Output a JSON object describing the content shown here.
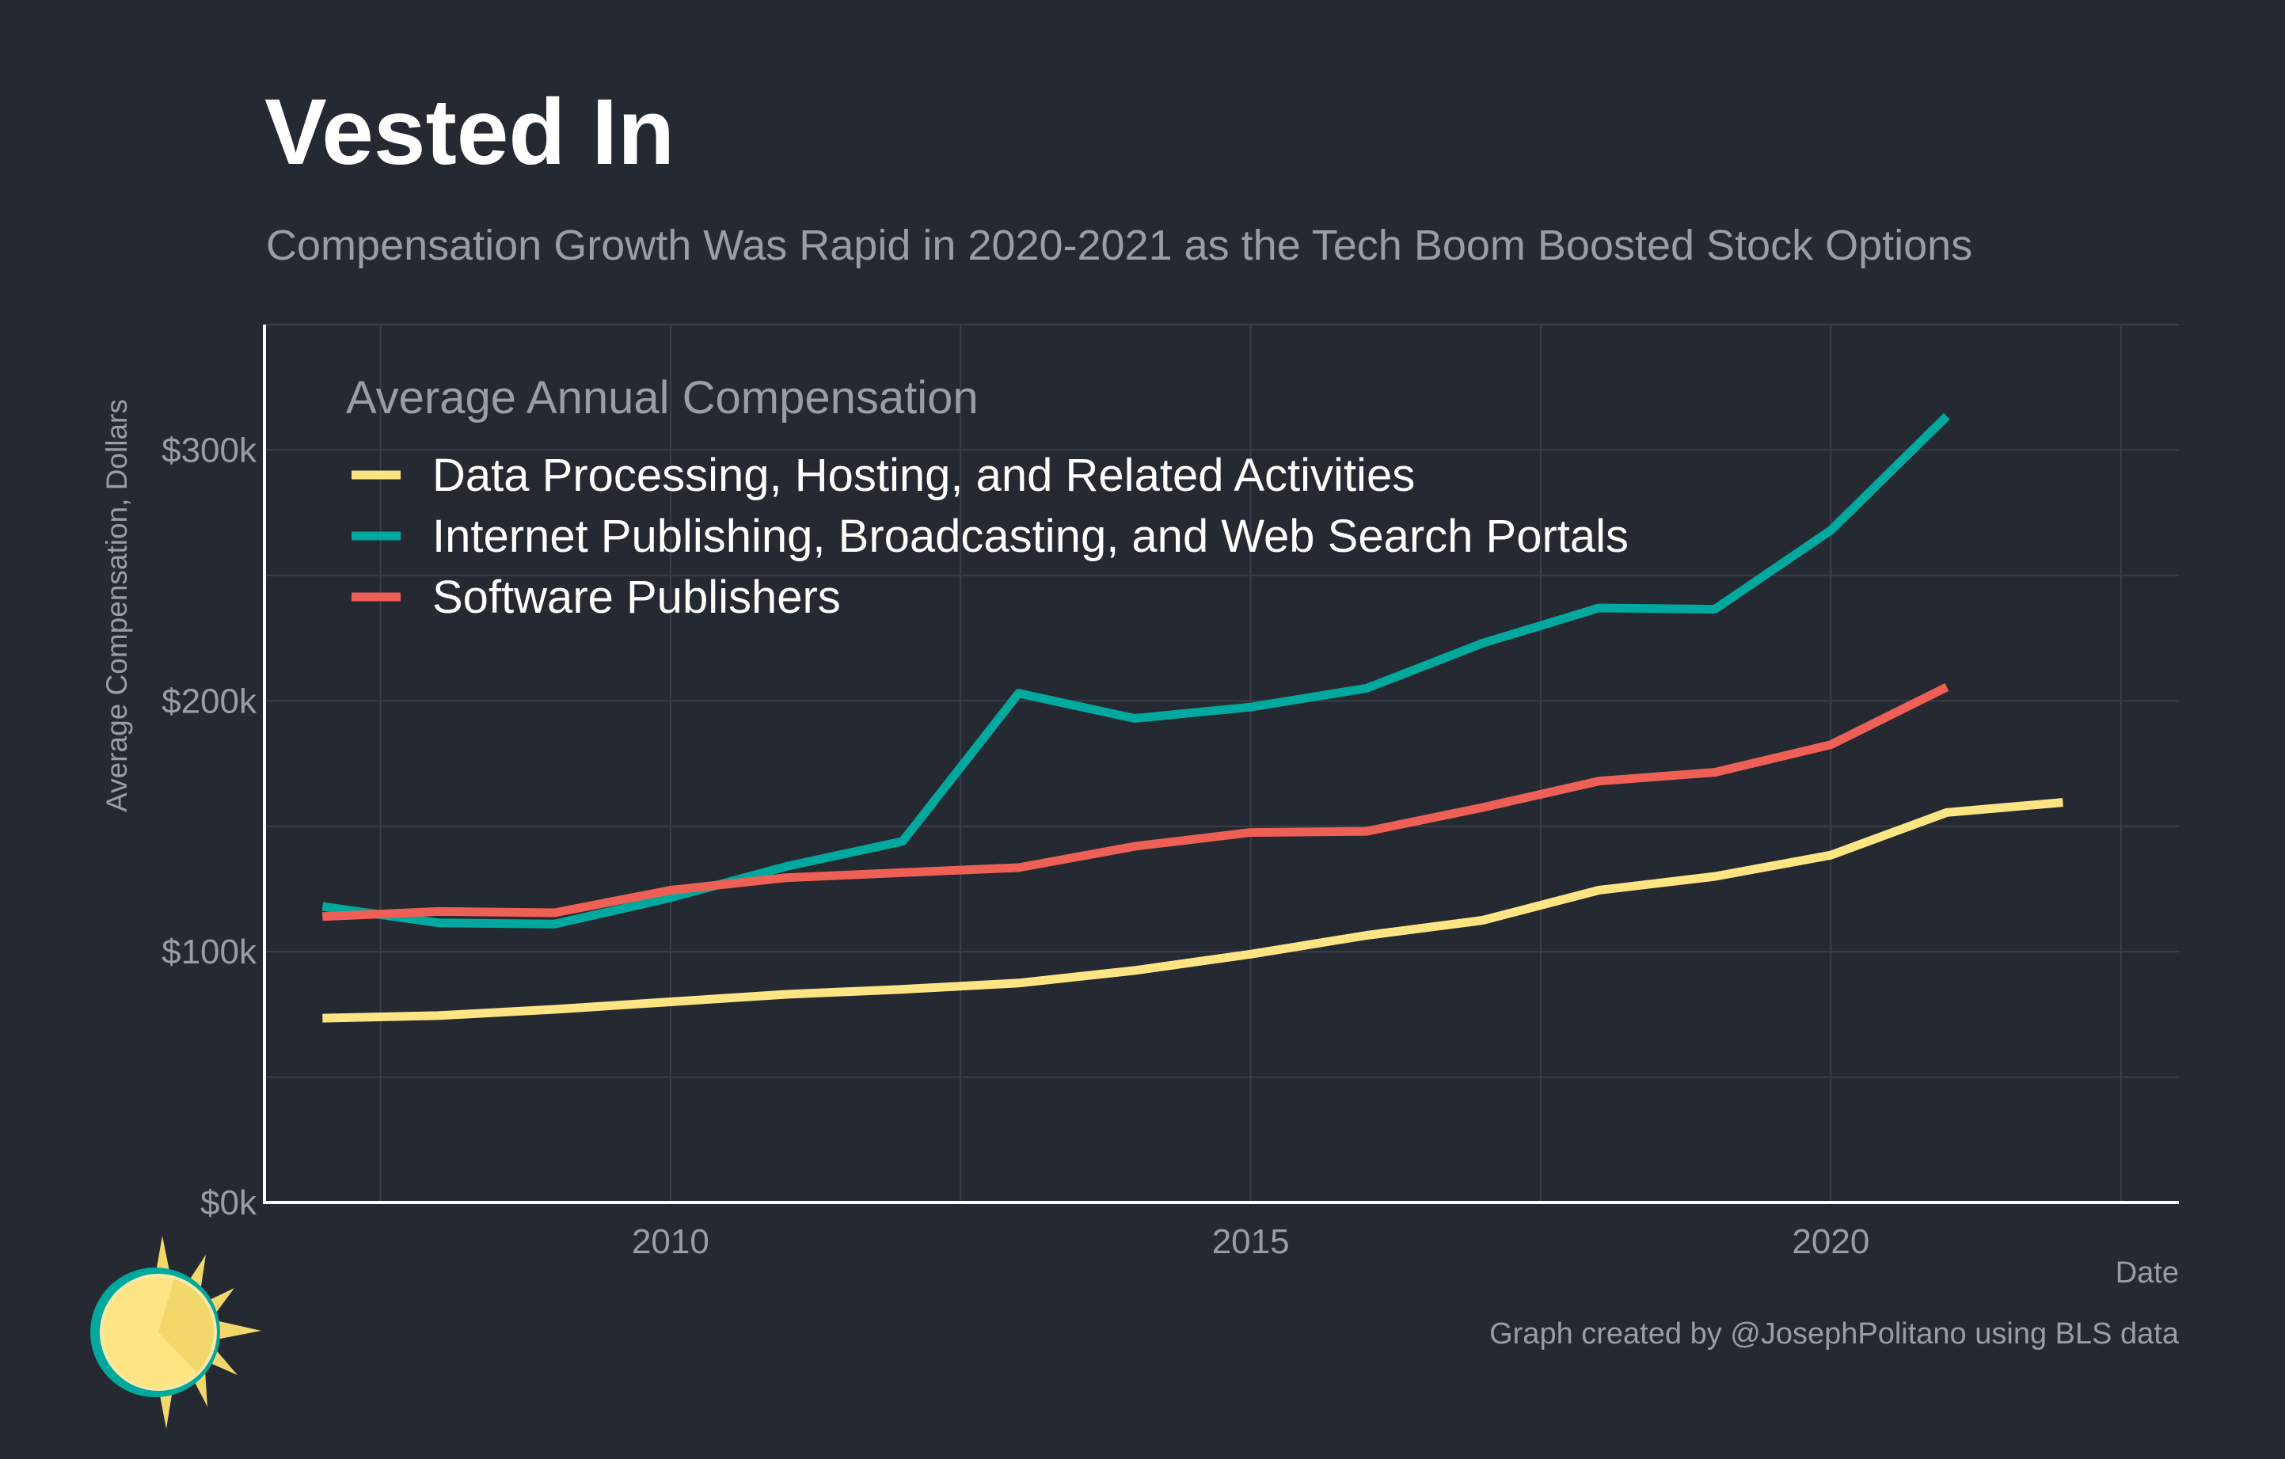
{
  "title": "Vested In",
  "subtitle": "Compensation Growth Was Rapid in 2020-2021 as the Tech Boom Boosted Stock Options",
  "caption": "Graph created by @JosephPolitano using BLS data",
  "colors": {
    "background": "#252932",
    "grid": "#3a3e47",
    "axis": "#ffffff",
    "text_muted": "#9a9da4"
  },
  "logo": {
    "icon": "sun-logo-icon"
  },
  "chart_data": {
    "type": "line",
    "xlabel": "Date",
    "ylabel": "Average Compensation, Dollars",
    "xlim": [
      2006.5,
      2023.0
    ],
    "ylim": [
      0,
      350000
    ],
    "x_ticks": [
      2010,
      2015,
      2020
    ],
    "x_tick_labels": [
      "2010",
      "2015",
      "2020"
    ],
    "y_ticks": [
      0,
      100000,
      200000,
      300000
    ],
    "y_tick_labels": [
      "$0k",
      "$100k",
      "$200k",
      "$300k"
    ],
    "grid": true,
    "legend": {
      "title": "Average Annual Compensation",
      "placement": "top-left"
    },
    "series": [
      {
        "name": "Data Processing, Hosting, and Related Activities",
        "color": "#ffe484",
        "x": [
          2007,
          2008,
          2009,
          2010,
          2011,
          2012,
          2013,
          2014,
          2015,
          2016,
          2017,
          2018,
          2019,
          2020,
          2021,
          2022
        ],
        "values": [
          73500,
          74500,
          77000,
          80000,
          83000,
          85000,
          87500,
          92500,
          99000,
          106500,
          112500,
          124500,
          130000,
          138500,
          155500,
          159500
        ]
      },
      {
        "name": "Internet Publishing, Broadcasting, and Web Search Portals",
        "color": "#00a99d",
        "x": [
          2007,
          2008,
          2009,
          2010,
          2011,
          2012,
          2013,
          2014,
          2015,
          2016,
          2017,
          2018,
          2019,
          2020,
          2021
        ],
        "values": [
          118000,
          111500,
          111000,
          121500,
          134000,
          144000,
          203000,
          193000,
          197500,
          205000,
          223000,
          237000,
          236500,
          268000,
          313500
        ]
      },
      {
        "name": "Software Publishers",
        "color": "#ee6055",
        "x": [
          2007,
          2008,
          2009,
          2010,
          2011,
          2012,
          2013,
          2014,
          2015,
          2016,
          2017,
          2018,
          2019,
          2020,
          2021
        ],
        "values": [
          114000,
          116000,
          115500,
          124500,
          129500,
          131500,
          133500,
          142000,
          147500,
          148000,
          157500,
          168000,
          171500,
          182500,
          205500
        ]
      }
    ]
  }
}
